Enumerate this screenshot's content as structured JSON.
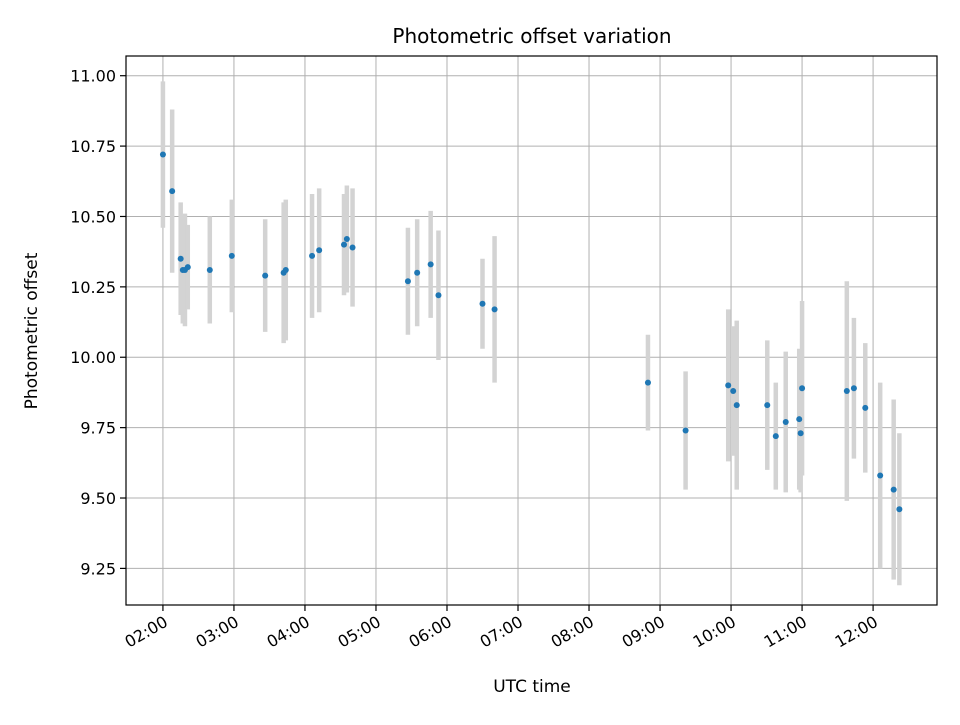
{
  "chart_data": {
    "type": "scatter",
    "title": "Photometric offset variation",
    "xlabel": "UTC time",
    "ylabel": "Photometric offset",
    "x_unit": "hours (UTC)",
    "xlim": [
      1.48,
      12.9
    ],
    "ylim": [
      9.12,
      11.07
    ],
    "x_ticks": [
      2,
      3,
      4,
      5,
      6,
      7,
      8,
      9,
      10,
      11,
      12
    ],
    "x_tick_labels": [
      "02:00",
      "03:00",
      "04:00",
      "05:00",
      "06:00",
      "07:00",
      "08:00",
      "09:00",
      "10:00",
      "11:00",
      "12:00"
    ],
    "y_ticks": [
      9.25,
      9.5,
      9.75,
      10.0,
      10.25,
      10.5,
      10.75,
      11.0
    ],
    "y_tick_labels": [
      "9.25",
      "9.50",
      "9.75",
      "10.00",
      "10.25",
      "10.50",
      "10.75",
      "11.00"
    ],
    "grid": true,
    "colors": {
      "point": "#1f77b4",
      "errorbar": "#d3d3d3",
      "grid": "#b0b0b0"
    },
    "series": [
      {
        "points": [
          {
            "x": 2.0,
            "y": 10.72,
            "err": 0.26
          },
          {
            "x": 2.13,
            "y": 10.59,
            "err": 0.29
          },
          {
            "x": 2.25,
            "y": 10.35,
            "err": 0.2
          },
          {
            "x": 2.28,
            "y": 10.31,
            "err": 0.19
          },
          {
            "x": 2.31,
            "y": 10.31,
            "err": 0.2
          },
          {
            "x": 2.35,
            "y": 10.32,
            "err": 0.15
          },
          {
            "x": 2.66,
            "y": 10.31,
            "err": 0.19
          },
          {
            "x": 2.97,
            "y": 10.36,
            "err": 0.2
          },
          {
            "x": 3.44,
            "y": 10.29,
            "err": 0.2
          },
          {
            "x": 3.7,
            "y": 10.3,
            "err": 0.25
          },
          {
            "x": 3.73,
            "y": 10.31,
            "err": 0.25
          },
          {
            "x": 4.1,
            "y": 10.36,
            "err": 0.22
          },
          {
            "x": 4.2,
            "y": 10.38,
            "err": 0.22
          },
          {
            "x": 4.55,
            "y": 10.4,
            "err": 0.18
          },
          {
            "x": 4.59,
            "y": 10.42,
            "err": 0.19
          },
          {
            "x": 4.67,
            "y": 10.39,
            "err": 0.21
          },
          {
            "x": 5.45,
            "y": 10.27,
            "err": 0.19
          },
          {
            "x": 5.58,
            "y": 10.3,
            "err": 0.19
          },
          {
            "x": 5.77,
            "y": 10.33,
            "err": 0.19
          },
          {
            "x": 5.88,
            "y": 10.22,
            "err": 0.23
          },
          {
            "x": 6.5,
            "y": 10.19,
            "err": 0.16
          },
          {
            "x": 6.67,
            "y": 10.17,
            "err": 0.26
          },
          {
            "x": 8.83,
            "y": 9.91,
            "err": 0.17
          },
          {
            "x": 9.36,
            "y": 9.74,
            "err": 0.21
          },
          {
            "x": 9.96,
            "y": 9.9,
            "err": 0.27
          },
          {
            "x": 10.03,
            "y": 9.88,
            "err": 0.23
          },
          {
            "x": 10.08,
            "y": 9.83,
            "err": 0.3
          },
          {
            "x": 10.51,
            "y": 9.83,
            "err": 0.23
          },
          {
            "x": 10.63,
            "y": 9.72,
            "err": 0.19
          },
          {
            "x": 10.77,
            "y": 9.77,
            "err": 0.25
          },
          {
            "x": 10.96,
            "y": 9.78,
            "err": 0.25
          },
          {
            "x": 10.98,
            "y": 9.73,
            "err": 0.21
          },
          {
            "x": 11.0,
            "y": 9.89,
            "err": 0.31
          },
          {
            "x": 11.63,
            "y": 9.88,
            "err": 0.39
          },
          {
            "x": 11.73,
            "y": 9.89,
            "err": 0.25
          },
          {
            "x": 11.89,
            "y": 9.82,
            "err": 0.23
          },
          {
            "x": 12.1,
            "y": 9.58,
            "err": 0.33
          },
          {
            "x": 12.29,
            "y": 9.53,
            "err": 0.32
          },
          {
            "x": 12.37,
            "y": 9.46,
            "err": 0.27
          }
        ]
      }
    ]
  }
}
